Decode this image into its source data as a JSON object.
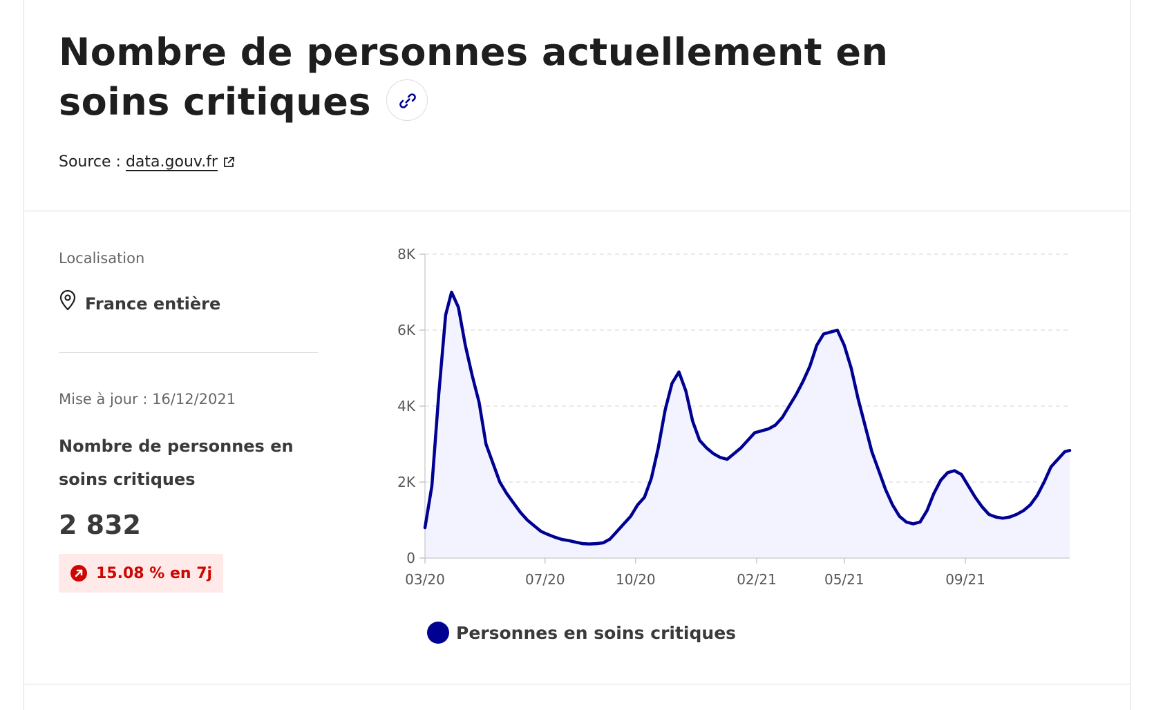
{
  "header": {
    "title": "Nombre de personnes actuellement en soins critiques",
    "source_label": "Source :",
    "source_link": "data.gouv.fr"
  },
  "sidebar": {
    "location_label": "Localisation",
    "location_value": "France entière",
    "update_text": "Mise à jour : 16/12/2021",
    "metric_label": "Nombre de personnes en soins critiques",
    "metric_value": "2 832",
    "trend_text": "15.08 % en 7j"
  },
  "colors": {
    "series": "#000091",
    "fill": "#f3f3ff",
    "trend": "#ce0500",
    "trend_bg": "#ffe9e9"
  },
  "chart_data": {
    "type": "area",
    "title": "",
    "xlabel": "",
    "ylabel": "",
    "ylim": [
      0,
      8000
    ],
    "y_ticks": [
      0,
      2000,
      4000,
      6000,
      8000
    ],
    "y_tick_labels": [
      "0",
      "2K",
      "4K",
      "6K",
      "8K"
    ],
    "x_tick_labels": [
      "03/20",
      "07/20",
      "10/20",
      "02/21",
      "05/21",
      "09/21"
    ],
    "x_ticks": [
      "2020-03-01",
      "2020-07-01",
      "2020-10-01",
      "2021-02-01",
      "2021-05-01",
      "2021-09-01"
    ],
    "x_range": [
      "2020-03-01",
      "2021-12-16"
    ],
    "grid": true,
    "legend_position": "bottom",
    "series": [
      {
        "name": "Personnes en soins critiques",
        "points": [
          [
            "2020-03-01",
            800
          ],
          [
            "2020-03-08",
            1900
          ],
          [
            "2020-03-15",
            4300
          ],
          [
            "2020-03-22",
            6400
          ],
          [
            "2020-03-28",
            7000
          ],
          [
            "2020-04-04",
            6600
          ],
          [
            "2020-04-11",
            5600
          ],
          [
            "2020-04-18",
            4800
          ],
          [
            "2020-04-25",
            4100
          ],
          [
            "2020-05-02",
            3000
          ],
          [
            "2020-05-09",
            2500
          ],
          [
            "2020-05-16",
            2000
          ],
          [
            "2020-05-23",
            1700
          ],
          [
            "2020-05-30",
            1450
          ],
          [
            "2020-06-06",
            1200
          ],
          [
            "2020-06-13",
            1000
          ],
          [
            "2020-06-20",
            850
          ],
          [
            "2020-06-27",
            700
          ],
          [
            "2020-07-04",
            620
          ],
          [
            "2020-07-11",
            550
          ],
          [
            "2020-07-18",
            490
          ],
          [
            "2020-07-25",
            460
          ],
          [
            "2020-08-01",
            420
          ],
          [
            "2020-08-08",
            380
          ],
          [
            "2020-08-15",
            370
          ],
          [
            "2020-08-22",
            380
          ],
          [
            "2020-08-29",
            400
          ],
          [
            "2020-09-05",
            500
          ],
          [
            "2020-09-12",
            700
          ],
          [
            "2020-09-19",
            900
          ],
          [
            "2020-09-26",
            1100
          ],
          [
            "2020-10-03",
            1400
          ],
          [
            "2020-10-10",
            1600
          ],
          [
            "2020-10-17",
            2100
          ],
          [
            "2020-10-24",
            2900
          ],
          [
            "2020-10-31",
            3900
          ],
          [
            "2020-11-07",
            4600
          ],
          [
            "2020-11-14",
            4900
          ],
          [
            "2020-11-21",
            4400
          ],
          [
            "2020-11-28",
            3600
          ],
          [
            "2020-12-05",
            3100
          ],
          [
            "2020-12-12",
            2900
          ],
          [
            "2020-12-19",
            2750
          ],
          [
            "2020-12-26",
            2650
          ],
          [
            "2021-01-02",
            2600
          ],
          [
            "2021-01-09",
            2750
          ],
          [
            "2021-01-16",
            2900
          ],
          [
            "2021-01-23",
            3100
          ],
          [
            "2021-01-30",
            3300
          ],
          [
            "2021-02-06",
            3350
          ],
          [
            "2021-02-13",
            3400
          ],
          [
            "2021-02-20",
            3500
          ],
          [
            "2021-02-27",
            3700
          ],
          [
            "2021-03-06",
            4000
          ],
          [
            "2021-03-13",
            4300
          ],
          [
            "2021-03-20",
            4650
          ],
          [
            "2021-03-27",
            5050
          ],
          [
            "2021-04-03",
            5600
          ],
          [
            "2021-04-10",
            5900
          ],
          [
            "2021-04-17",
            5950
          ],
          [
            "2021-04-24",
            6000
          ],
          [
            "2021-05-01",
            5600
          ],
          [
            "2021-05-08",
            5000
          ],
          [
            "2021-05-15",
            4200
          ],
          [
            "2021-05-22",
            3500
          ],
          [
            "2021-05-29",
            2800
          ],
          [
            "2021-06-05",
            2300
          ],
          [
            "2021-06-12",
            1800
          ],
          [
            "2021-06-19",
            1400
          ],
          [
            "2021-06-26",
            1100
          ],
          [
            "2021-07-03",
            950
          ],
          [
            "2021-07-10",
            900
          ],
          [
            "2021-07-17",
            950
          ],
          [
            "2021-07-24",
            1250
          ],
          [
            "2021-07-31",
            1700
          ],
          [
            "2021-08-07",
            2050
          ],
          [
            "2021-08-14",
            2250
          ],
          [
            "2021-08-21",
            2300
          ],
          [
            "2021-08-28",
            2200
          ],
          [
            "2021-09-04",
            1900
          ],
          [
            "2021-09-11",
            1600
          ],
          [
            "2021-09-18",
            1350
          ],
          [
            "2021-09-25",
            1150
          ],
          [
            "2021-10-02",
            1080
          ],
          [
            "2021-10-09",
            1050
          ],
          [
            "2021-10-16",
            1080
          ],
          [
            "2021-10-23",
            1150
          ],
          [
            "2021-10-30",
            1250
          ],
          [
            "2021-11-06",
            1400
          ],
          [
            "2021-11-13",
            1650
          ],
          [
            "2021-11-20",
            2000
          ],
          [
            "2021-11-27",
            2400
          ],
          [
            "2021-12-04",
            2600
          ],
          [
            "2021-12-11",
            2800
          ],
          [
            "2021-12-16",
            2832
          ]
        ]
      }
    ]
  }
}
